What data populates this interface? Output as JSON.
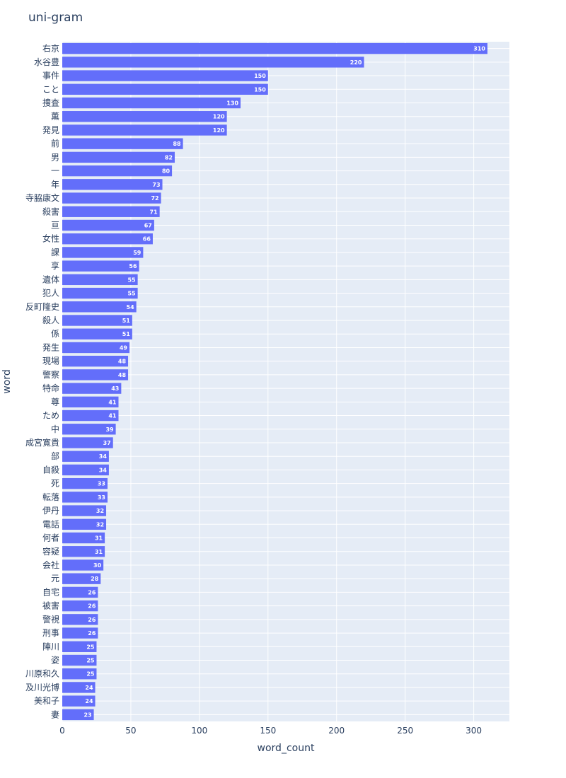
{
  "chart_data": {
    "type": "bar",
    "orientation": "horizontal",
    "title": "uni-gram",
    "xlabel": "word_count",
    "ylabel": "word",
    "xlim": [
      0,
      326
    ],
    "xticks": [
      0,
      50,
      100,
      150,
      200,
      250,
      300
    ],
    "grid": true,
    "legend": "none",
    "colors": {
      "bar": "#636efa",
      "plot_bg": "#e5ecf6",
      "grid": "#ffffff",
      "text": "#2a3f5f"
    },
    "categories": [
      "右京",
      "水谷豊",
      "事件",
      "こと",
      "捜査",
      "薫",
      "発見",
      "前",
      "男",
      "一",
      "年",
      "寺脇康文",
      "殺害",
      "亘",
      "女性",
      "課",
      "享",
      "遺体",
      "犯人",
      "反町隆史",
      "殺人",
      "係",
      "発生",
      "現場",
      "警察",
      "特命",
      "尊",
      "ため",
      "中",
      "成宮寛貴",
      "部",
      "自殺",
      "死",
      "転落",
      "伊丹",
      "電話",
      "何者",
      "容疑",
      "会社",
      "元",
      "自宅",
      "被害",
      "警視",
      "刑事",
      "陣川",
      "姿",
      "川原和久",
      "及川光博",
      "美和子",
      "妻"
    ],
    "values": [
      310,
      220,
      150,
      150,
      130,
      120,
      120,
      88,
      82,
      80,
      73,
      72,
      71,
      67,
      66,
      59,
      56,
      55,
      55,
      54,
      51,
      51,
      49,
      48,
      48,
      43,
      41,
      41,
      39,
      37,
      34,
      34,
      33,
      33,
      32,
      32,
      31,
      31,
      30,
      28,
      26,
      26,
      26,
      26,
      25,
      25,
      25,
      24,
      24,
      23
    ]
  }
}
